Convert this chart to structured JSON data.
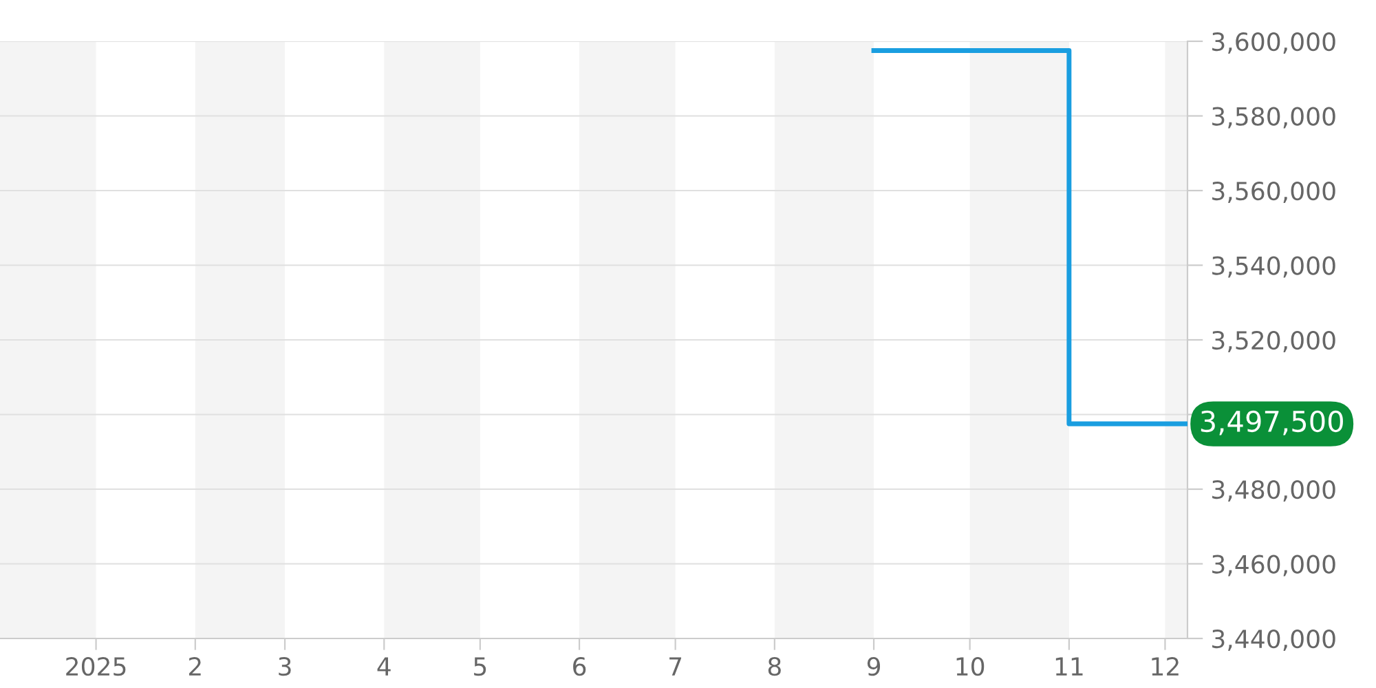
{
  "chart_data": {
    "type": "step",
    "x": [
      "2025-09-01",
      "2025-11-01",
      "2025-12-08"
    ],
    "series": [
      {
        "color": "#1a9ee0",
        "values": [
          3597500,
          3497500,
          3497500
        ]
      }
    ],
    "xlim": [
      "2024-12-02",
      "2025-12-08"
    ],
    "xticks": [
      {
        "value": "2025-01-01",
        "label": "2025"
      },
      {
        "value": "2025-02-01",
        "label": "2"
      },
      {
        "value": "2025-03-01",
        "label": "3"
      },
      {
        "value": "2025-04-01",
        "label": "4"
      },
      {
        "value": "2025-05-01",
        "label": "5"
      },
      {
        "value": "2025-06-01",
        "label": "6"
      },
      {
        "value": "2025-07-01",
        "label": "7"
      },
      {
        "value": "2025-08-01",
        "label": "8"
      },
      {
        "value": "2025-09-01",
        "label": "9"
      },
      {
        "value": "2025-10-01",
        "label": "10"
      },
      {
        "value": "2025-11-01",
        "label": "11"
      },
      {
        "value": "2025-12-01",
        "label": "12"
      }
    ],
    "ylim": [
      3440000,
      3600000
    ],
    "yticks": [
      {
        "value": 3440000,
        "label": "3,440,000"
      },
      {
        "value": 3460000,
        "label": "3,460,000"
      },
      {
        "value": 3480000,
        "label": "3,480,000"
      },
      {
        "value": 3500000,
        "label": null
      },
      {
        "value": 3520000,
        "label": "3,520,000"
      },
      {
        "value": 3540000,
        "label": "3,540,000"
      },
      {
        "value": 3560000,
        "label": "3,560,000"
      },
      {
        "value": 3580000,
        "label": "3,580,000"
      },
      {
        "value": 3600000,
        "label": "3,600,000"
      }
    ],
    "bands": [
      {
        "axis": "x",
        "from": "2024-12-02",
        "to": "2025-01-01",
        "color": "#f4f4f4"
      },
      {
        "axis": "x",
        "from": "2025-02-01",
        "to": "2025-03-01",
        "color": "#f4f4f4"
      },
      {
        "axis": "x",
        "from": "2025-04-01",
        "to": "2025-05-01",
        "color": "#f4f4f4"
      },
      {
        "axis": "x",
        "from": "2025-06-01",
        "to": "2025-07-01",
        "color": "#f4f4f4"
      },
      {
        "axis": "x",
        "from": "2025-08-01",
        "to": "2025-09-01",
        "color": "#f4f4f4"
      },
      {
        "axis": "x",
        "from": "2025-10-01",
        "to": "2025-11-01",
        "color": "#f4f4f4"
      },
      {
        "axis": "x",
        "from": "2025-12-01",
        "to": "2025-12-08",
        "color": "#f4f4f4"
      }
    ],
    "annotations": [
      {
        "text": "3,497,500",
        "x": "2025-12-08",
        "y": 3497500
      }
    ],
    "grid": "y"
  }
}
